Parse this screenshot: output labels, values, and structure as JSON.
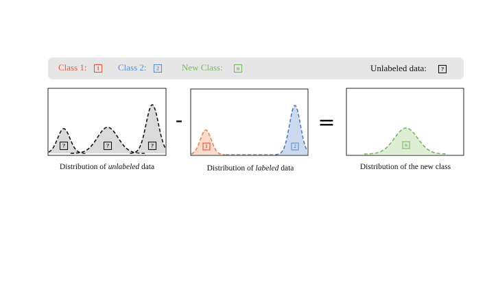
{
  "legend": {
    "items": [
      {
        "label": "Class 1:",
        "icon": "1"
      },
      {
        "label": "Class 2:",
        "icon": "2"
      },
      {
        "label": "New Class:",
        "icon": "n"
      }
    ],
    "unlabeled": {
      "label": "Unlabeled data:",
      "icon": "?"
    }
  },
  "operators": [
    "-",
    "="
  ],
  "panels": [
    {
      "caption": {
        "before": "Distribution of ",
        "emphasis": "unlabeled",
        "after": " data"
      },
      "markers": [
        "?",
        "?",
        "?"
      ]
    },
    {
      "caption": {
        "before": "Distribution of ",
        "emphasis": "labeled",
        "after": " data"
      },
      "markers": [
        "1",
        "2"
      ]
    },
    {
      "caption": {
        "before": "Distribution of the new class"
      },
      "markers": [
        "n"
      ]
    }
  ]
}
